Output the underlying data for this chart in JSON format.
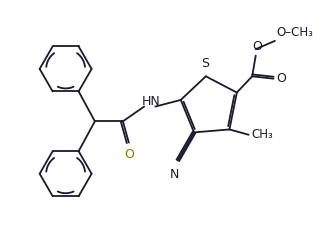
{
  "bg_color": "#ffffff",
  "line_color": "#1a1a2e",
  "figsize": [
    3.22,
    2.45
  ],
  "dpi": 100,
  "xlim": [
    0,
    3.22
  ],
  "ylim": [
    0,
    2.45
  ]
}
